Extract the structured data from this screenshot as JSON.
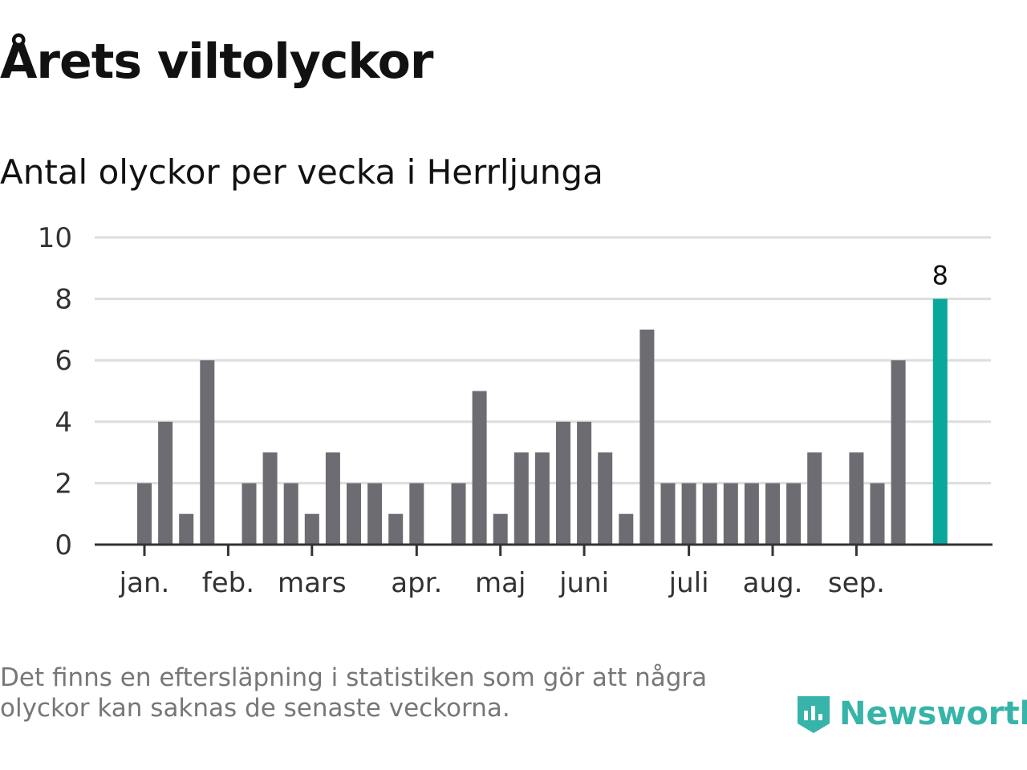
{
  "title": "Årets viltolyckor",
  "subtitle": "Antal olyckor per vecka i Herrljunga",
  "note": "Det finns en eftersläpning i statistiken som gör att några olyckor kan saknas de senaste veckorna.",
  "logo": "Newsworthy",
  "colors": {
    "bar": "#6d6c72",
    "highlight": "#0aa89b",
    "grid": "#dddddd",
    "axis": "#333333"
  },
  "chart_data": {
    "type": "bar",
    "title": "Antal olyckor per vecka i Herrljunga",
    "ylim": [
      0,
      10
    ],
    "yticks": [
      0,
      2,
      4,
      6,
      8,
      10
    ],
    "values": [
      2,
      4,
      1,
      6,
      0,
      2,
      3,
      2,
      1,
      3,
      2,
      2,
      1,
      2,
      0,
      2,
      5,
      1,
      3,
      3,
      4,
      4,
      3,
      1,
      7,
      2,
      2,
      2,
      2,
      2,
      2,
      2,
      3,
      0,
      3,
      2,
      6,
      0,
      8
    ],
    "highlight_index": 38,
    "highlight_label": "8",
    "months": [
      {
        "label": "jan.",
        "week": 0
      },
      {
        "label": "feb.",
        "week": 4
      },
      {
        "label": "mars",
        "week": 8
      },
      {
        "label": "apr.",
        "week": 13
      },
      {
        "label": "maj",
        "week": 17
      },
      {
        "label": "juni",
        "week": 21
      },
      {
        "label": "juli",
        "week": 26
      },
      {
        "label": "aug.",
        "week": 30
      },
      {
        "label": "sep.",
        "week": 34
      }
    ]
  }
}
